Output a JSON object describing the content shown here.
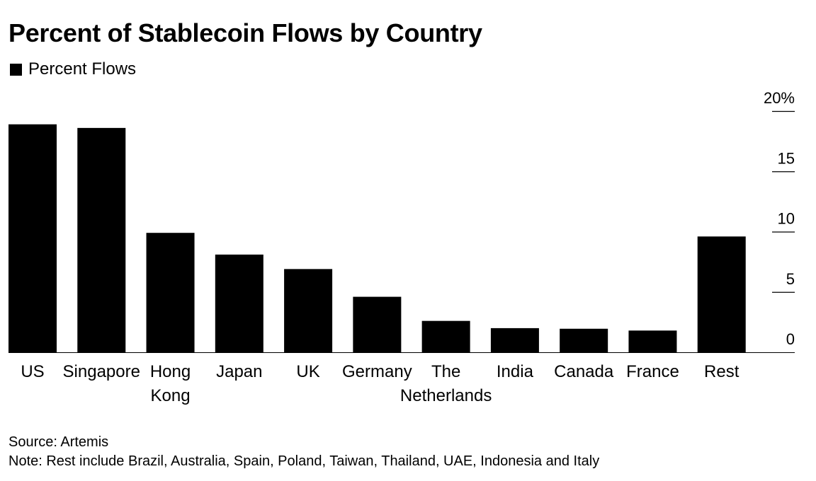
{
  "chart_data": {
    "type": "bar",
    "title": "Percent of Stablecoin Flows by Country",
    "legend": {
      "position": "top-left",
      "entries": [
        "Percent Flows"
      ]
    },
    "series": [
      {
        "name": "Percent Flows",
        "color": "#000000",
        "values": [
          18.9,
          18.6,
          9.9,
          8.1,
          6.9,
          4.6,
          2.6,
          2.0,
          1.95,
          1.8,
          9.6
        ]
      }
    ],
    "categories": [
      [
        "US"
      ],
      [
        "Singapore"
      ],
      [
        "Hong",
        "Kong"
      ],
      [
        "Japan"
      ],
      [
        "UK"
      ],
      [
        "Germany"
      ],
      [
        "The",
        "Netherlands"
      ],
      [
        "India"
      ],
      [
        "Canada"
      ],
      [
        "France"
      ],
      [
        "Rest"
      ]
    ],
    "y_axis": {
      "position": "right",
      "ylim": [
        0,
        20
      ],
      "ticks": [
        0,
        5,
        10,
        15,
        20
      ],
      "tick_labels": [
        "0",
        "5",
        "10",
        "15",
        "20%"
      ]
    },
    "grid": false,
    "xlabel": "",
    "ylabel": ""
  },
  "source": "Source: Artemis",
  "note": "Note: Rest include Brazil, Australia, Spain, Poland, Taiwan, Thailand, UAE, Indonesia and Italy"
}
